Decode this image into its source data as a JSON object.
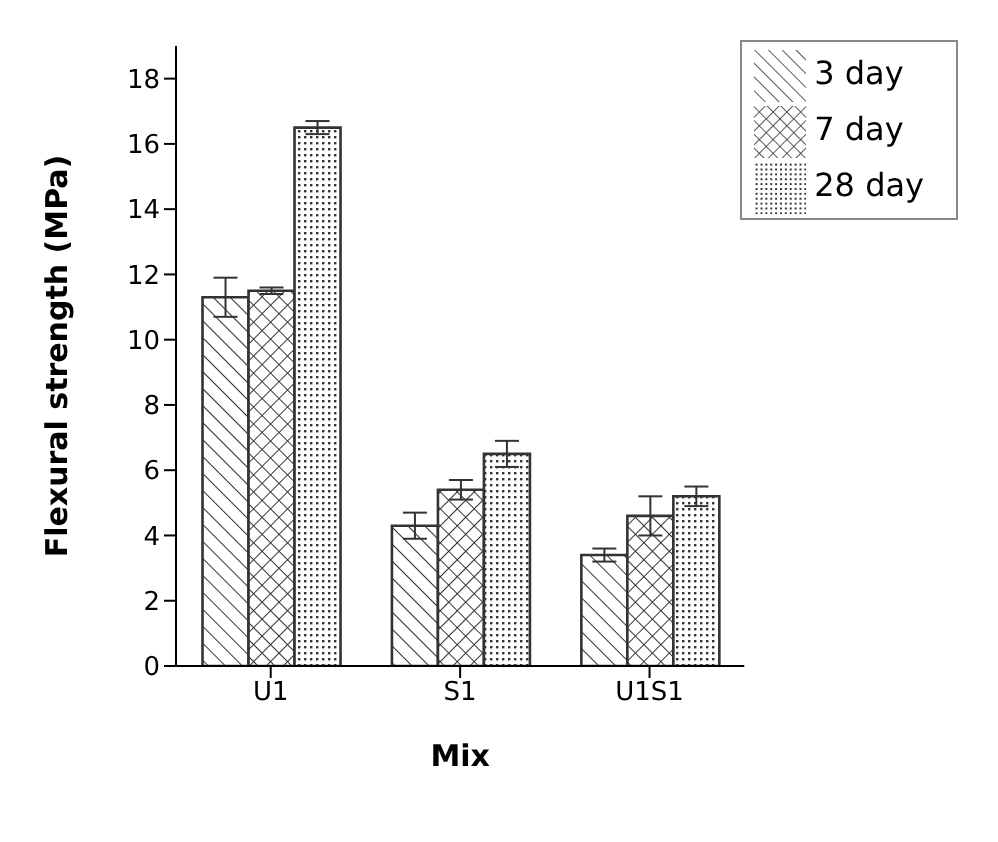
{
  "chart_data": {
    "type": "bar",
    "xlabel": "Mix",
    "ylabel": "Flexural strength (MPa)",
    "categories": [
      "U1",
      "S1",
      "U1S1"
    ],
    "series": [
      {
        "name": "3 day",
        "color": "#333333",
        "values": [
          11.3,
          4.3,
          3.4
        ],
        "errors": [
          0.6,
          0.4,
          0.2
        ]
      },
      {
        "name": "7 day",
        "color": "#333333",
        "values": [
          11.5,
          5.4,
          4.6
        ],
        "errors": [
          0.1,
          0.3,
          0.6
        ]
      },
      {
        "name": "28 day",
        "color": "#333333",
        "values": [
          16.5,
          6.5,
          5.2
        ],
        "errors": [
          0.2,
          0.4,
          0.3
        ]
      }
    ],
    "ylim": [
      0,
      19
    ],
    "yticks": [
      0,
      2,
      4,
      6,
      8,
      10,
      12,
      14,
      16,
      18
    ],
    "grid": false,
    "legend": "top right"
  }
}
